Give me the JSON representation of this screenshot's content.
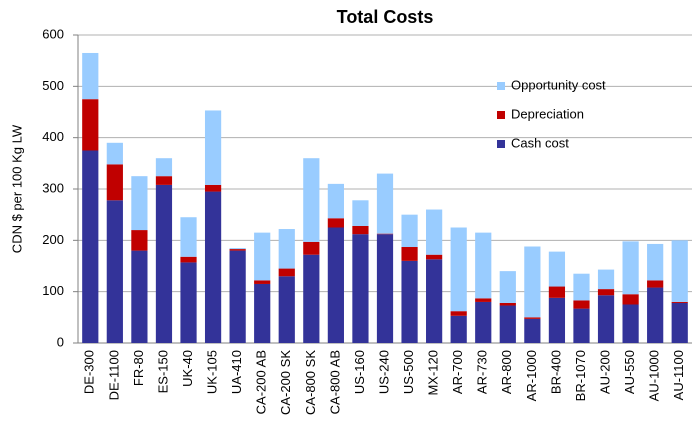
{
  "chart_data": {
    "type": "stacked_bar",
    "title": "Total Costs",
    "y_label": "CDN $ per 100 Kg LW",
    "categories": [
      "DE-300",
      "DE-1100",
      "FR-80",
      "ES-150",
      "UK-40",
      "UK-105",
      "UA-410",
      "CA-200 AB",
      "CA-200 SK",
      "CA-800 SK",
      "CA-800 AB",
      "US-160",
      "US-240",
      "US-500",
      "MX-120",
      "AR-700",
      "AR-730",
      "AR-800",
      "AR-1000",
      "BR-400",
      "BR-1070",
      "AU-200",
      "AU-550",
      "AU-1000",
      "AU-1100"
    ],
    "series": [
      {
        "name": "Cash cost",
        "color": "#333399",
        "values": [
          375,
          278,
          180,
          308,
          157,
          295,
          180,
          115,
          130,
          172,
          225,
          212,
          212,
          160,
          163,
          53,
          80,
          73,
          47,
          88,
          67,
          93,
          75,
          108,
          78
        ]
      },
      {
        "name": "Depreciation",
        "color": "#c00000",
        "values": [
          100,
          70,
          40,
          17,
          11,
          13,
          3,
          7,
          15,
          25,
          18,
          16,
          1,
          27,
          9,
          9,
          7,
          5,
          3,
          22,
          16,
          12,
          20,
          14,
          2
        ]
      },
      {
        "name": "Opportunity cost",
        "color": "#99ccff",
        "values": [
          90,
          42,
          105,
          35,
          77,
          145,
          2,
          93,
          77,
          163,
          67,
          50,
          117,
          63,
          88,
          163,
          128,
          62,
          138,
          68,
          52,
          38,
          103,
          71,
          120
        ]
      }
    ],
    "ylim": [
      0,
      600
    ],
    "yticks": [
      0,
      100,
      200,
      300,
      400,
      500,
      600
    ],
    "grid": true,
    "legend": "upper right"
  }
}
